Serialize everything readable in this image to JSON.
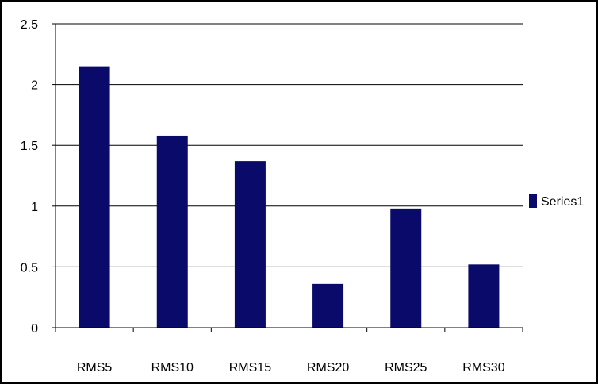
{
  "chart_data": {
    "type": "bar",
    "categories": [
      "RMS5",
      "RMS10",
      "RMS15",
      "RMS20",
      "RMS25",
      "RMS30"
    ],
    "series": [
      {
        "name": "Series1",
        "values": [
          2.15,
          1.58,
          1.37,
          0.36,
          0.98,
          0.52
        ]
      }
    ],
    "ylim": [
      0,
      2.5
    ],
    "yticks": [
      "0",
      "0.5",
      "1",
      "1.5",
      "2",
      "2.5"
    ],
    "grid": true,
    "legend": "right",
    "colors": {
      "bar": "#0a0a6b",
      "grid": "#000000",
      "axis": "#000000"
    }
  }
}
